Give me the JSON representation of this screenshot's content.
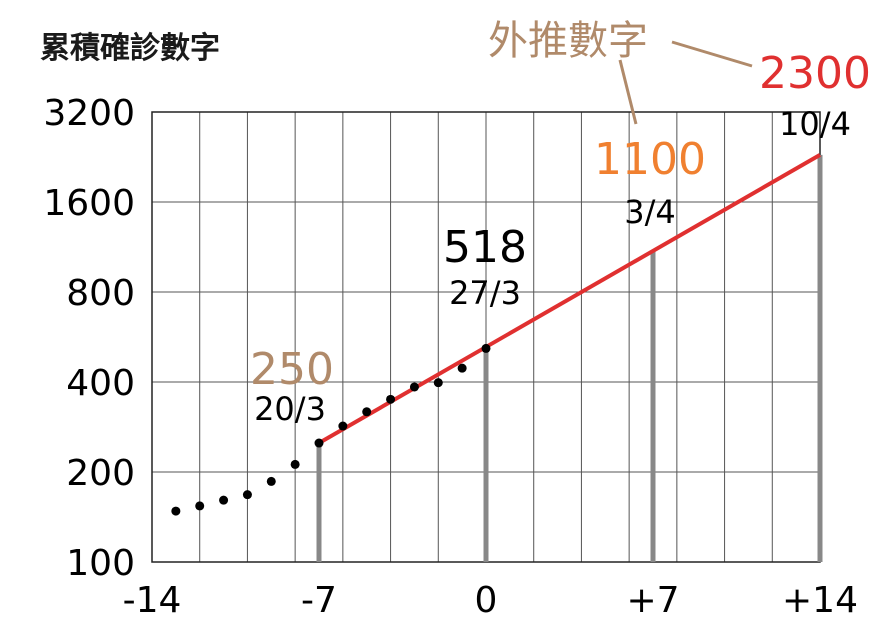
{
  "chart_data": {
    "type": "line",
    "ylabel": "累積確診數字",
    "extrapolation_label": "外推數字",
    "y_scale": "log2",
    "ylim": [
      100,
      3200
    ],
    "xlim": [
      -14,
      14
    ],
    "x_ticks": [
      "-14",
      "-7",
      "0",
      "+7",
      "+14"
    ],
    "y_ticks": [
      "100",
      "200",
      "400",
      "800",
      "1600",
      "3200"
    ],
    "grid": true,
    "colors": {
      "points": "#000000",
      "fit_line": "#e03030",
      "stems": "#888888",
      "label_250": "#b08a6a",
      "label_1100": "#f08030",
      "label_2300": "#e03030",
      "label_518": "#000000"
    },
    "series": [
      {
        "name": "",
        "type": "scatter",
        "x": [
          -13,
          -12,
          -11,
          -10,
          -9,
          -8,
          -7,
          -6,
          -5,
          -4,
          -3,
          -2,
          -1,
          0
        ],
        "y": [
          148,
          154,
          161,
          168,
          186,
          212,
          250,
          285,
          318,
          350,
          385,
          398,
          445,
          518
        ]
      },
      {
        "name": "",
        "type": "line",
        "x": [
          -7,
          14
        ],
        "y": [
          250,
          2300
        ]
      }
    ],
    "stems": [
      {
        "x": -7,
        "y": 250
      },
      {
        "x": 0,
        "y": 518
      },
      {
        "x": 7,
        "y": 1100
      },
      {
        "x": 14,
        "y": 2300
      }
    ],
    "annotations": [
      {
        "x": -7,
        "y": 250,
        "value": "250",
        "date": "20/3"
      },
      {
        "x": 0,
        "y": 518,
        "value": "518",
        "date": "27/3"
      },
      {
        "x": 7,
        "y": 1100,
        "value": "1100",
        "date": "3/4"
      },
      {
        "x": 14,
        "y": 2300,
        "value": "2300",
        "date": "10/4"
      }
    ]
  }
}
